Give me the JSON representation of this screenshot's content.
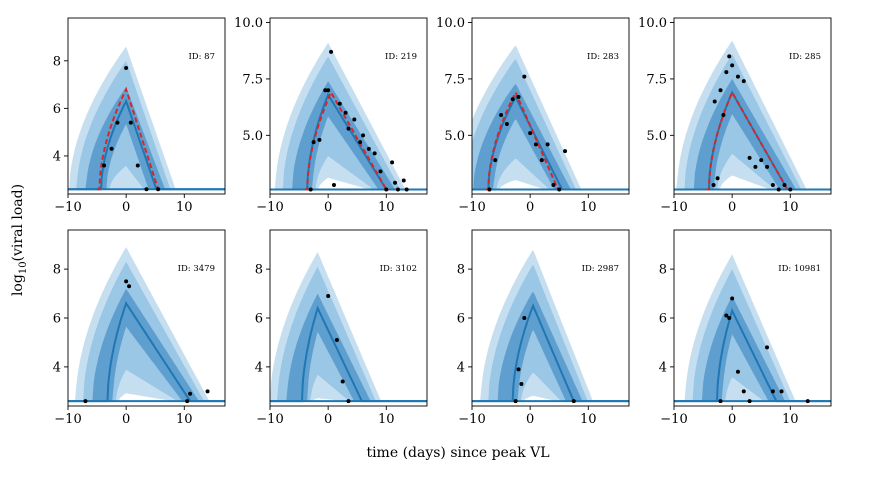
{
  "figure": {
    "xlabel": "time (days) since peak VL",
    "ylabel": "log",
    "ylabel_sub": "10",
    "ylabel_rest": "(viral load)"
  },
  "colors": {
    "band_outer": "#c6dff0",
    "band_middle": "#9ac7e6",
    "band_inner": "#5f9fcf",
    "median_line": "#1f77b4",
    "fit_line": "#d62728",
    "points": "#000000",
    "threshold": "#1f77b4"
  },
  "chart_data": [
    {
      "type": "line",
      "id_label": "ID: 87",
      "xlim": [
        -10,
        17
      ],
      "ylim": [
        2.4,
        9.8
      ],
      "xticks": [
        -10,
        0,
        10
      ],
      "yticks": [
        4,
        6,
        8
      ],
      "ytick_labels": [
        "4",
        "6",
        "8"
      ],
      "threshold": 2.6,
      "median": {
        "start": -4.3,
        "peak_x": 0,
        "peak_y": 6.3,
        "end": 5.2
      },
      "fit": {
        "start": -4.6,
        "peak_x": 0,
        "peak_y": 6.8,
        "end": 5.5
      },
      "points": [
        [
          -3.8,
          3.6
        ],
        [
          -2.5,
          4.3
        ],
        [
          -1.5,
          5.4
        ],
        [
          0,
          7.7
        ],
        [
          0.8,
          5.4
        ],
        [
          2,
          3.6
        ],
        [
          3.5,
          2.6
        ],
        [
          5.5,
          2.6
        ]
      ]
    },
    {
      "type": "line",
      "id_label": "ID: 219",
      "xlim": [
        -10,
        17
      ],
      "ylim": [
        2.4,
        10.2
      ],
      "xticks": [
        -10,
        0,
        10
      ],
      "yticks": [
        5,
        7.5,
        10
      ],
      "ytick_labels": [
        "5.0",
        "7.5",
        "10.0"
      ],
      "threshold": 2.6,
      "median": {
        "start": -3.6,
        "peak_x": 0,
        "peak_y": 6.8,
        "end": 10
      },
      "fit": {
        "start": -3.6,
        "peak_x": 0.5,
        "peak_y": 6.9,
        "end": 10
      },
      "points": [
        [
          -3,
          2.6
        ],
        [
          -2.5,
          4.7
        ],
        [
          -1.5,
          4.8
        ],
        [
          -0.5,
          7
        ],
        [
          0,
          7
        ],
        [
          0.5,
          8.7
        ],
        [
          1,
          2.8
        ],
        [
          2,
          6.4
        ],
        [
          3,
          6
        ],
        [
          3.5,
          5.3
        ],
        [
          4.5,
          5.7
        ],
        [
          5.5,
          4.7
        ],
        [
          6,
          5
        ],
        [
          7,
          4.4
        ],
        [
          8,
          4.2
        ],
        [
          9,
          3.4
        ],
        [
          10,
          2.6
        ],
        [
          11,
          3.8
        ],
        [
          11.5,
          2.9
        ],
        [
          12,
          2.6
        ],
        [
          13,
          3
        ],
        [
          13.5,
          2.6
        ]
      ]
    },
    {
      "type": "line",
      "id_label": "ID: 283",
      "xlim": [
        -10,
        17
      ],
      "ylim": [
        2.4,
        10.2
      ],
      "xticks": [
        -10,
        0,
        10
      ],
      "yticks": [
        5,
        7.5,
        10
      ],
      "ytick_labels": [
        "5.0",
        "7.5",
        "10.0"
      ],
      "threshold": 2.6,
      "median": {
        "start": -7.2,
        "peak_x": -2.5,
        "peak_y": 6.7,
        "end": 5.5
      },
      "fit": {
        "start": -7.2,
        "peak_x": -2.5,
        "peak_y": 6.9,
        "end": 4.8
      },
      "points": [
        [
          -7,
          2.6
        ],
        [
          -6,
          3.9
        ],
        [
          -5,
          5.9
        ],
        [
          -4,
          5.5
        ],
        [
          -3,
          6.6
        ],
        [
          -2,
          6.7
        ],
        [
          -1,
          7.6
        ],
        [
          0,
          5.1
        ],
        [
          1,
          4.6
        ],
        [
          2,
          3.9
        ],
        [
          3,
          4.6
        ],
        [
          4,
          2.8
        ],
        [
          5,
          2.6
        ],
        [
          6,
          4.3
        ]
      ]
    },
    {
      "type": "line",
      "id_label": "ID: 285",
      "xlim": [
        -10,
        17
      ],
      "ylim": [
        2.4,
        10.2
      ],
      "xticks": [
        -10,
        0,
        10
      ],
      "yticks": [
        5,
        7.5
      ],
      "ytick_labels": [
        "5.0",
        "7.5"
      ],
      "ytick_extra": [
        10
      ],
      "ytick_extra_labels": [
        "10.0"
      ],
      "threshold": 2.6,
      "median": {
        "start": -4,
        "peak_x": 0,
        "peak_y": 6.9,
        "end": 9.5
      },
      "fit": {
        "start": -4,
        "peak_x": 0,
        "peak_y": 6.9,
        "end": 9.5
      },
      "points": [
        [
          -3.2,
          2.8
        ],
        [
          -3,
          6.5
        ],
        [
          -2.5,
          3.1
        ],
        [
          -2,
          7
        ],
        [
          -1.5,
          5.9
        ],
        [
          -1,
          7.8
        ],
        [
          -0.5,
          8.5
        ],
        [
          0,
          8.1
        ],
        [
          1,
          7.6
        ],
        [
          2,
          7.4
        ],
        [
          3,
          4
        ],
        [
          4,
          3.6
        ],
        [
          5,
          3.9
        ],
        [
          6,
          3.6
        ],
        [
          7,
          2.8
        ],
        [
          8,
          2.6
        ],
        [
          9,
          2.8
        ],
        [
          10,
          2.6
        ]
      ]
    },
    {
      "type": "line",
      "id_label": "ID: 3479",
      "xlim": [
        -10,
        17
      ],
      "ylim": [
        2.4,
        9.6
      ],
      "xticks": [
        -10,
        0,
        10
      ],
      "yticks": [
        4,
        6,
        8
      ],
      "ytick_labels": [
        "4",
        "6",
        "8"
      ],
      "threshold": 2.6,
      "median": {
        "start": -3.2,
        "peak_x": 0,
        "peak_y": 6.6,
        "end": 11
      },
      "fit": null,
      "points": [
        [
          -7,
          2.6
        ],
        [
          0,
          7.5
        ],
        [
          0.5,
          7.3
        ],
        [
          10.5,
          2.6
        ],
        [
          11,
          2.9
        ],
        [
          14,
          3
        ]
      ]
    },
    {
      "type": "line",
      "id_label": "ID: 3102",
      "xlim": [
        -10,
        17
      ],
      "ylim": [
        2.4,
        9.6
      ],
      "xticks": [
        -10,
        0,
        10
      ],
      "yticks": [
        4,
        6,
        8
      ],
      "ytick_labels": [
        "4",
        "6",
        "8"
      ],
      "threshold": 2.6,
      "median": {
        "start": -4.5,
        "peak_x": -1.8,
        "peak_y": 6.4,
        "end": 5.8
      },
      "fit": null,
      "points": [
        [
          0,
          6.9
        ],
        [
          1.5,
          5.1
        ],
        [
          2.5,
          3.4
        ],
        [
          3.5,
          2.6
        ]
      ]
    },
    {
      "type": "line",
      "id_label": "ID: 2987",
      "xlim": [
        -10,
        17
      ],
      "ylim": [
        2.4,
        9.6
      ],
      "xticks": [
        -10,
        0,
        10
      ],
      "yticks": [
        4,
        6,
        8
      ],
      "ytick_labels": [
        "4",
        "6",
        "8"
      ],
      "threshold": 2.6,
      "median": {
        "start": -3,
        "peak_x": 0.5,
        "peak_y": 6.5,
        "end": 7.5
      },
      "fit": null,
      "points": [
        [
          -2.5,
          2.6
        ],
        [
          -2,
          3.9
        ],
        [
          -1.5,
          3.3
        ],
        [
          -1,
          6
        ],
        [
          7.5,
          2.6
        ]
      ]
    },
    {
      "type": "line",
      "id_label": "ID: 10981",
      "xlim": [
        -10,
        17
      ],
      "ylim": [
        2.4,
        9.6
      ],
      "xticks": [
        -10,
        0,
        10
      ],
      "yticks": [
        4,
        6,
        8
      ],
      "ytick_labels": [
        "4",
        "6",
        "8"
      ],
      "threshold": 2.6,
      "median": {
        "start": -2.6,
        "peak_x": 0,
        "peak_y": 6.3,
        "end": 7.6
      },
      "fit": null,
      "points": [
        [
          -2,
          2.6
        ],
        [
          -1,
          6.1
        ],
        [
          -0.5,
          6
        ],
        [
          0,
          6.8
        ],
        [
          1,
          3.8
        ],
        [
          2,
          3
        ],
        [
          3,
          2.6
        ],
        [
          6,
          4.8
        ],
        [
          7,
          3
        ],
        [
          8.5,
          3
        ],
        [
          13,
          2.6
        ]
      ]
    }
  ]
}
